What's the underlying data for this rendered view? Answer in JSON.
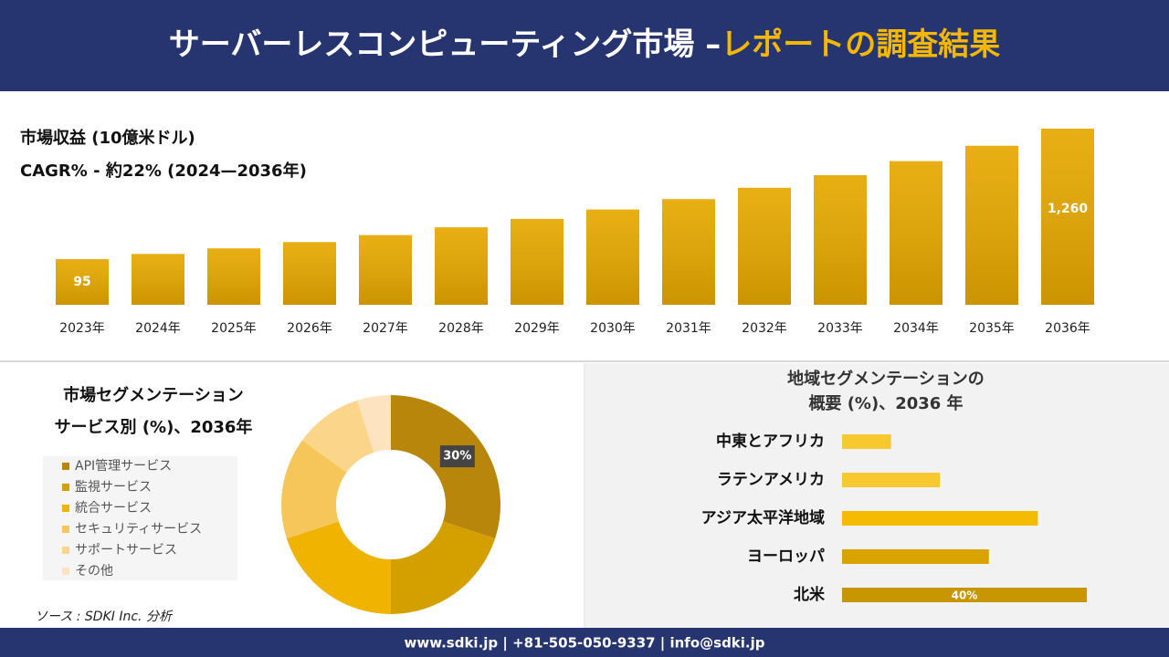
{
  "header": {
    "title": "サーバーレスコンピューティング市場 –",
    "highlight": "レポートの調査結果"
  },
  "chart_data": [
    {
      "type": "bar",
      "title": "市場収益 (10億米ドル)",
      "subtitle": "CAGR% - 約22% (2024—2036年)",
      "categories": [
        "2023年",
        "2024年",
        "2025年",
        "2026年",
        "2027年",
        "2028年",
        "2029年",
        "2030年",
        "2031年",
        "2032年",
        "2033年",
        "2034年",
        "2035年",
        "2036年"
      ],
      "values": [
        95,
        116,
        141,
        172,
        210,
        257,
        313,
        382,
        466,
        568,
        693,
        846,
        1032,
        1260
      ],
      "value_labels": [
        "95",
        null,
        null,
        null,
        null,
        null,
        null,
        null,
        null,
        null,
        null,
        null,
        null,
        "1,260"
      ],
      "color": "#e6a800"
    },
    {
      "type": "donut",
      "title": [
        "市場セグメンテーション",
        "サービス別 (%)、2036年"
      ],
      "categories": [
        "API管理サービス",
        "監視サービス",
        "統合サービス",
        "セキュリティサービス",
        "サポートサービス",
        "その他"
      ],
      "values": [
        30,
        20,
        20,
        15,
        10,
        5
      ],
      "value_labels": [
        "30%",
        null,
        null,
        null,
        null,
        null
      ],
      "colors": [
        "#b8860b",
        "#d4a000",
        "#f0b400",
        "#f7c65a",
        "#fbd58a",
        "#fde3c0"
      ]
    },
    {
      "type": "hbar",
      "title": [
        "地域セグメンテーションの",
        "概要 (%)、2036 年"
      ],
      "categories": [
        "中東とアフリカ",
        "ラテンアメリカ",
        "アジア太平洋地域",
        "ヨーロッパ",
        "北米"
      ],
      "values": [
        8,
        16,
        32,
        24,
        40
      ],
      "value_labels": [
        null,
        null,
        null,
        null,
        "40%"
      ],
      "colors": [
        "#f7c830",
        "#f7c830",
        "#f5bb00",
        "#d9a400",
        "#c89600"
      ]
    }
  ],
  "source": "ソース : SDKI Inc. 分析",
  "footer": "www.sdki.jp | +81-505-050-9337 | info@sdki.jp"
}
